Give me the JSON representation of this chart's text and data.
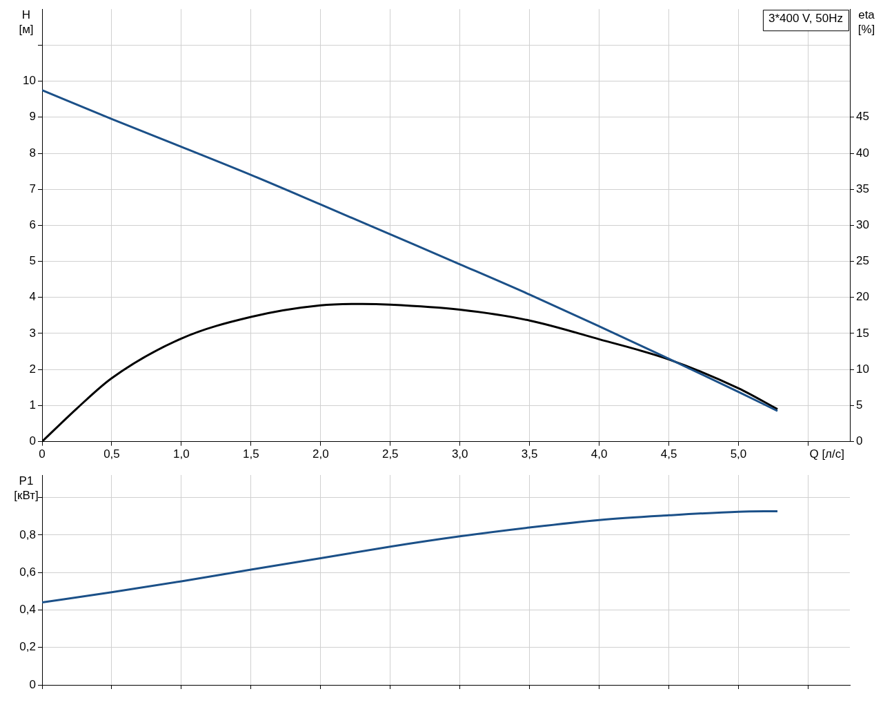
{
  "chart_data": [
    {
      "type": "line",
      "title": "3*400 V, 50Hz",
      "xlabel": "Q [л/с]",
      "ylabel": "H [м]",
      "y2label": "eta [%]",
      "grid": true,
      "xlim": [
        0,
        5.8
      ],
      "xticks": [
        0,
        {
          "value": 0.5,
          "label": "0,5"
        },
        {
          "value": 1,
          "label": "1,0"
        },
        {
          "value": 1.5,
          "label": "1,5"
        },
        {
          "value": 2,
          "label": "2,0"
        },
        {
          "value": 2.5,
          "label": "2,5"
        },
        {
          "value": 3,
          "label": "3,0"
        },
        {
          "value": 3.5,
          "label": "3,5"
        },
        {
          "value": 4,
          "label": "4,0"
        },
        {
          "value": 4.5,
          "label": "4,5"
        },
        {
          "value": 5,
          "label": "5,0"
        },
        {
          "value": 5.5,
          "label": null
        }
      ],
      "ylim": [
        0,
        12
      ],
      "yticks": [
        0,
        1,
        2,
        3,
        4,
        5,
        6,
        7,
        8,
        9,
        10,
        {
          "value": 11,
          "label": null
        }
      ],
      "y2lim": [
        0,
        60
      ],
      "y2ticks": [
        0,
        5,
        10,
        15,
        20,
        25,
        30,
        35,
        40,
        45
      ],
      "series": [
        {
          "color": "#1b5088",
          "x": [
            0,
            0.5,
            1,
            1.5,
            2,
            2.5,
            3,
            3.5,
            4,
            4.5,
            5,
            5.28
          ],
          "values": [
            9.75,
            8.95,
            8.18,
            7.4,
            6.58,
            5.75,
            4.92,
            4.08,
            3.2,
            2.3,
            1.38,
            0.85
          ]
        },
        {
          "color": "#000000",
          "axis": "y2",
          "x": [
            0,
            0.25,
            0.5,
            1,
            1.5,
            2,
            2.3,
            2.5,
            3,
            3.5,
            4,
            4.5,
            5,
            5.28
          ],
          "values": [
            0,
            4.6,
            8.8,
            14.3,
            17.3,
            18.9,
            19.1,
            19,
            18.3,
            16.8,
            14.2,
            11.4,
            7.4,
            4.5
          ]
        }
      ]
    },
    {
      "type": "line",
      "ylabel": "P1 [кВт]",
      "grid": true,
      "tick_labels": "y",
      "xlim": [
        0,
        5.8
      ],
      "xticks": [
        0,
        0.5,
        1,
        1.5,
        2,
        2.5,
        3,
        3.5,
        4,
        4.5,
        5,
        5.5
      ],
      "ylim": [
        0,
        1.12
      ],
      "yticks": [
        0,
        {
          "value": 0.2,
          "label": "0,2"
        },
        {
          "value": 0.4,
          "label": "0,4"
        },
        {
          "value": 0.6,
          "label": "0,6"
        },
        {
          "value": 0.8,
          "label": "0,8"
        },
        {
          "value": 1,
          "label": null
        }
      ],
      "series": [
        {
          "color": "#1b5088",
          "x": [
            0,
            0.5,
            1,
            1.5,
            2,
            2.5,
            3,
            3.5,
            4,
            4.5,
            5,
            5.28
          ],
          "values": [
            0.44,
            0.495,
            0.553,
            0.615,
            0.676,
            0.738,
            0.793,
            0.84,
            0.88,
            0.905,
            0.924,
            0.927
          ]
        }
      ]
    }
  ]
}
